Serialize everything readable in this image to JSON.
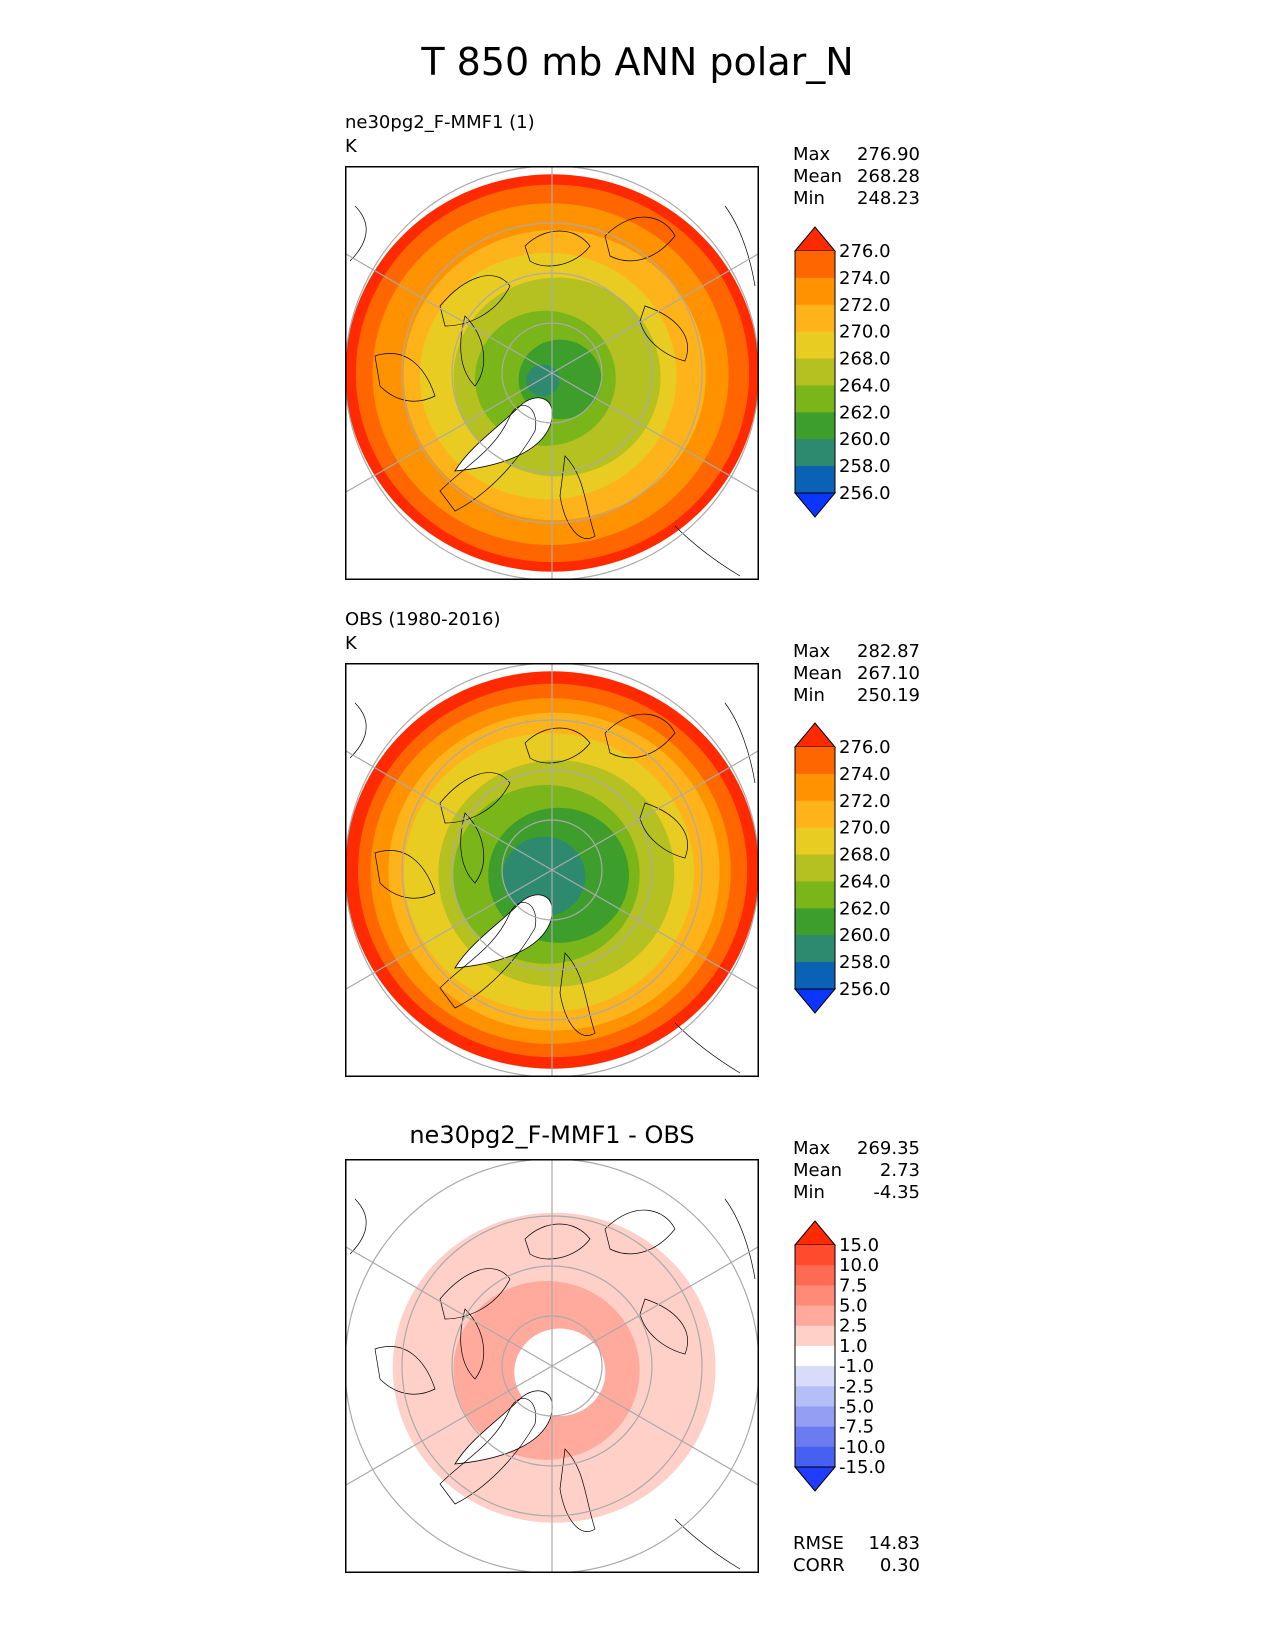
{
  "figure_title": "T 850 mb ANN polar_N",
  "chart_data": [
    {
      "type": "heatmap",
      "projection": "north-polar-stereographic",
      "title": "ne30pg2_F-MMF1 (1)",
      "units": "K",
      "stats": [
        {
          "label": "Max",
          "value": "276.90"
        },
        {
          "label": "Mean",
          "value": "268.28"
        },
        {
          "label": "Min",
          "value": "248.23"
        }
      ],
      "colorbar": {
        "ticks": [
          "276.0",
          "274.0",
          "272.0",
          "270.0",
          "268.0",
          "264.0",
          "262.0",
          "260.0",
          "258.0",
          "256.0"
        ],
        "colors": [
          "#ff2a00",
          "#ff6600",
          "#ff9200",
          "#ffb31a",
          "#e8cc22",
          "#b5c021",
          "#7ab519",
          "#3d9e2c",
          "#2e8a6e",
          "#0a62b5",
          "#0a36ff"
        ],
        "extend": "both"
      },
      "field_levels": [
        {
          "color": "#ff2a00",
          "frac": 1.0
        },
        {
          "color": "#ff6600",
          "frac": 0.95
        },
        {
          "color": "#ff9200",
          "frac": 0.86
        },
        {
          "color": "#ffb31a",
          "frac": 0.73
        },
        {
          "color": "#e8cc22",
          "frac": 0.62
        },
        {
          "color": "#b5c021",
          "frac": 0.5
        },
        {
          "color": "#7ab519",
          "frac": 0.34
        },
        {
          "color": "#3d9e2c",
          "frac": 0.2
        },
        {
          "color": "#2e8a6e",
          "frac": 0.08
        }
      ]
    },
    {
      "type": "heatmap",
      "projection": "north-polar-stereographic",
      "title": "OBS (1980-2016)",
      "units": "K",
      "stats": [
        {
          "label": "Max",
          "value": "282.87"
        },
        {
          "label": "Mean",
          "value": "267.10"
        },
        {
          "label": "Min",
          "value": "250.19"
        }
      ],
      "colorbar": {
        "ticks": [
          "276.0",
          "274.0",
          "272.0",
          "270.0",
          "268.0",
          "264.0",
          "262.0",
          "260.0",
          "258.0",
          "256.0"
        ],
        "colors": [
          "#ff2a00",
          "#ff6600",
          "#ff9200",
          "#ffb31a",
          "#e8cc22",
          "#b5c021",
          "#7ab519",
          "#3d9e2c",
          "#2e8a6e",
          "#0a62b5",
          "#0a36ff"
        ],
        "extend": "both"
      },
      "field_levels": [
        {
          "color": "#ff2a00",
          "frac": 1.0
        },
        {
          "color": "#ff6600",
          "frac": 0.94
        },
        {
          "color": "#ff9200",
          "frac": 0.87
        },
        {
          "color": "#ffb31a",
          "frac": 0.8
        },
        {
          "color": "#e8cc22",
          "frac": 0.7
        },
        {
          "color": "#b5c021",
          "frac": 0.57
        },
        {
          "color": "#7ab519",
          "frac": 0.45
        },
        {
          "color": "#3d9e2c",
          "frac": 0.34
        },
        {
          "color": "#2e8a6e",
          "frac": 0.2
        }
      ]
    },
    {
      "type": "heatmap",
      "projection": "north-polar-stereographic",
      "title": "ne30pg2_F-MMF1 - OBS",
      "units": "",
      "stats": [
        {
          "label": "Max",
          "value": "269.35"
        },
        {
          "label": "Mean",
          "value": "2.73"
        },
        {
          "label": "Min",
          "value": "-4.35"
        }
      ],
      "metrics": [
        {
          "label": "RMSE",
          "value": "14.83"
        },
        {
          "label": "CORR",
          "value": "0.30"
        }
      ],
      "colorbar": {
        "ticks": [
          "15.0",
          "10.0",
          "7.5",
          "5.0",
          "2.5",
          "1.0",
          "-1.0",
          "-2.5",
          "-5.0",
          "-7.5",
          "-10.0",
          "-15.0"
        ],
        "colors": [
          "#ff2a00",
          "#ff4a2e",
          "#ff6a52",
          "#ff8a78",
          "#ffaa9c",
          "#ffd0c8",
          "#ffffff",
          "#d8dcfa",
          "#b6bef6",
          "#949ef2",
          "#6c7cef",
          "#4660f2",
          "#1f3cff"
        ],
        "extend": "both"
      },
      "field_levels": [
        {
          "color": "#ffffff",
          "frac": 1.0
        },
        {
          "color": "#ffd0c8",
          "frac": 0.78
        },
        {
          "color": "#ffaa9c",
          "frac": 0.45
        },
        {
          "color": "#ffffff",
          "frac": 0.22
        }
      ]
    }
  ]
}
